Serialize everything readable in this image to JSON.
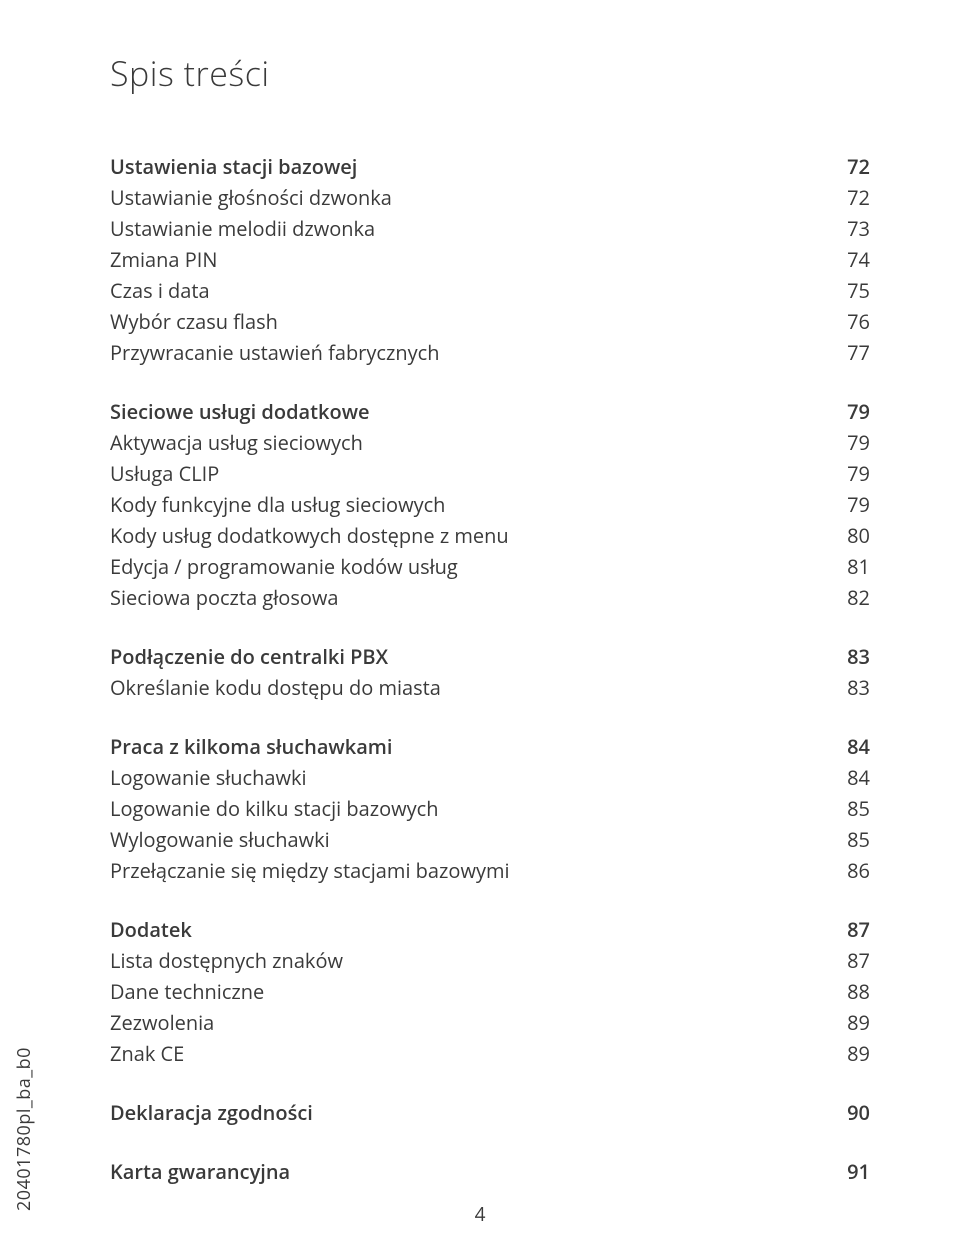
{
  "page_title": "Spis treści",
  "sections": [
    {
      "rows": [
        {
          "label": "Ustawienia stacji bazowej",
          "page": "72",
          "bold": true
        },
        {
          "label": "Ustawianie głośności dzwonka",
          "page": "72",
          "bold": false
        },
        {
          "label": "Ustawianie melodii dzwonka",
          "page": "73",
          "bold": false
        },
        {
          "label": "Zmiana PIN",
          "page": "74",
          "bold": false
        },
        {
          "label": "Czas i data",
          "page": "75",
          "bold": false
        },
        {
          "label": "Wybór czasu flash",
          "page": "76",
          "bold": false
        },
        {
          "label": "Przywracanie ustawień fabrycznych",
          "page": "77",
          "bold": false
        }
      ]
    },
    {
      "rows": [
        {
          "label": "Sieciowe usługi dodatkowe",
          "page": "79",
          "bold": true
        },
        {
          "label": "Aktywacja usług sieciowych",
          "page": "79",
          "bold": false
        },
        {
          "label": "Usługa CLIP",
          "page": "79",
          "bold": false
        },
        {
          "label": "Kody funkcyjne dla usług sieciowych",
          "page": "79",
          "bold": false
        },
        {
          "label": "Kody usług dodatkowych dostępne z menu",
          "page": "80",
          "bold": false
        },
        {
          "label": "Edycja / programowanie kodów usług",
          "page": "81",
          "bold": false
        },
        {
          "label": "Sieciowa poczta głosowa",
          "page": "82",
          "bold": false
        }
      ]
    },
    {
      "rows": [
        {
          "label": "Podłączenie do centralki PBX",
          "page": "83",
          "bold": true
        },
        {
          "label": "Określanie kodu dostępu do miasta",
          "page": "83",
          "bold": false
        }
      ]
    },
    {
      "rows": [
        {
          "label": "Praca z kilkoma słuchawkami",
          "page": "84",
          "bold": true
        },
        {
          "label": "Logowanie słuchawki",
          "page": "84",
          "bold": false
        },
        {
          "label": "Logowanie do kilku stacji bazowych",
          "page": "85",
          "bold": false
        },
        {
          "label": "Wylogowanie słuchawki",
          "page": "85",
          "bold": false
        },
        {
          "label": "Przełączanie się między stacjami bazowymi",
          "page": "86",
          "bold": false
        }
      ]
    },
    {
      "rows": [
        {
          "label": "Dodatek",
          "page": "87",
          "bold": true
        },
        {
          "label": "Lista dostępnych znaków",
          "page": "87",
          "bold": false
        },
        {
          "label": "Dane techniczne",
          "page": "88",
          "bold": false
        },
        {
          "label": "Zezwolenia",
          "page": "89",
          "bold": false
        },
        {
          "label": "Znak CE",
          "page": "89",
          "bold": false
        }
      ]
    },
    {
      "rows": [
        {
          "label": "Deklaracja zgodności",
          "page": "90",
          "bold": true
        }
      ]
    },
    {
      "rows": [
        {
          "label": "Karta gwarancyjna",
          "page": "91",
          "bold": true
        }
      ]
    }
  ],
  "vertical_code": "20401780pl_ba_b0",
  "page_number": "4",
  "style": {
    "bg": "#ffffff",
    "text_color": "#3a3a3a",
    "title_fontsize": 34,
    "row_fontsize": 20,
    "bold_weight": 600
  }
}
